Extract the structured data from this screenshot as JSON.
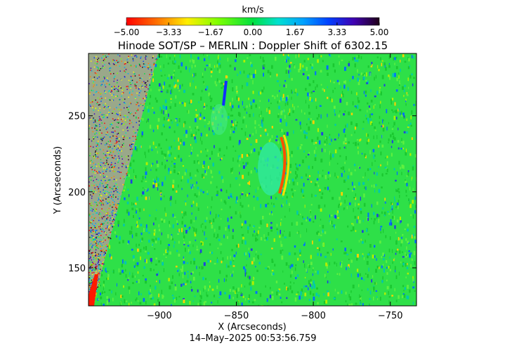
{
  "chart_data": {
    "type": "heatmap",
    "title": "Hinode SOT/SP – MERLIN : Doppler Shift of 6302.15",
    "xlabel": "X (Arcseconds)",
    "ylabel": "Y (Arcseconds)",
    "footer": "14–May–2025 00:53:56.759",
    "xlim": [
      -946,
      -733
    ],
    "ylim": [
      125,
      291
    ],
    "x_ticks": [
      -900,
      -850,
      -800,
      -750
    ],
    "x_tick_labels": [
      "−900",
      "−850",
      "−800",
      "−750"
    ],
    "y_ticks": [
      150,
      200,
      250
    ],
    "y_tick_labels": [
      "150",
      "200",
      "250"
    ],
    "colorbar": {
      "label": "km/s",
      "range": [
        -5.0,
        5.0
      ],
      "ticks": [
        -5.0,
        -3.33,
        -1.67,
        0.0,
        1.67,
        3.33,
        5.0
      ],
      "tick_labels": [
        "−5.00",
        "−3.33",
        "−1.67",
        "0.00",
        "1.67",
        "3.33",
        "5.00"
      ],
      "colormap": [
        "#ff0000",
        "#ff8000",
        "#ffff00",
        "#80ff00",
        "#00e040",
        "#00e0c0",
        "#00a0ff",
        "#0040ff",
        "#4000c0",
        "#200020"
      ]
    }
  }
}
